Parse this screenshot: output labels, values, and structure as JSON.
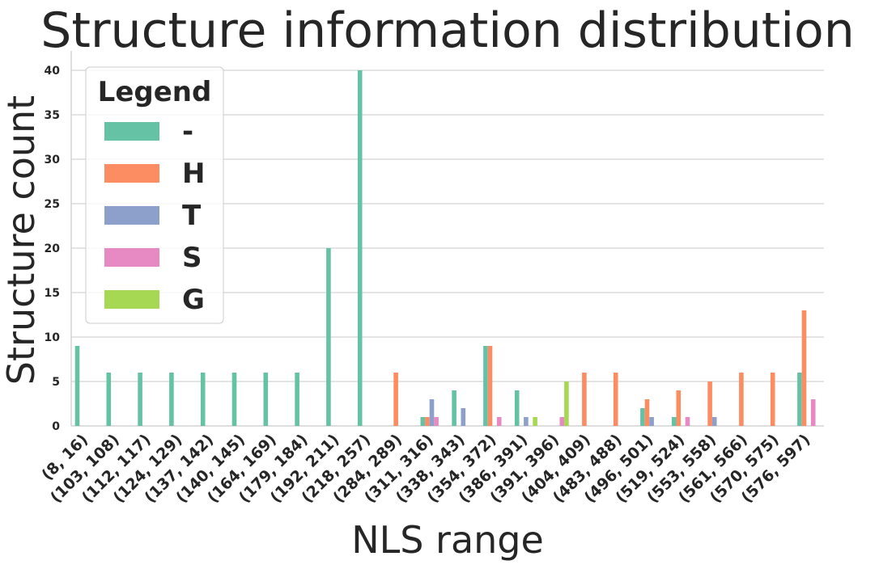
{
  "chart_data": {
    "type": "bar",
    "title": "Structure information distribution",
    "xlabel": "NLS range",
    "ylabel": "Structure count",
    "ylim": [
      0,
      42
    ],
    "yticks": [
      0,
      5,
      10,
      15,
      20,
      25,
      30,
      35,
      40
    ],
    "grid": "horizontal",
    "legend_title": "Legend",
    "legend_position": "top-left",
    "categories": [
      "(8, 16)",
      "(103, 108)",
      "(112, 117)",
      "(124, 129)",
      "(137, 142)",
      "(140, 145)",
      "(164, 169)",
      "(179, 184)",
      "(192, 211)",
      "(218, 257)",
      "(284, 289)",
      "(311, 316)",
      "(338, 343)",
      "(354, 372)",
      "(386, 391)",
      "(391, 396)",
      "(404, 409)",
      "(483, 488)",
      "(496, 501)",
      "(519, 524)",
      "(553, 558)",
      "(561, 566)",
      "(570, 575)",
      "(576, 597)"
    ],
    "series": [
      {
        "name": "-",
        "color": "#66c2a5",
        "values": [
          9,
          6,
          6,
          6,
          6,
          6,
          6,
          6,
          20,
          40,
          0,
          1,
          4,
          9,
          4,
          0,
          0,
          0,
          2,
          1,
          0,
          0,
          0,
          6
        ]
      },
      {
        "name": "H",
        "color": "#fc8d62",
        "values": [
          0,
          0,
          0,
          0,
          0,
          0,
          0,
          0,
          0,
          0,
          6,
          1,
          0,
          9,
          0,
          0,
          6,
          6,
          3,
          4,
          5,
          6,
          6,
          13
        ]
      },
      {
        "name": "T",
        "color": "#8da0cb",
        "values": [
          0,
          0,
          0,
          0,
          0,
          0,
          0,
          0,
          0,
          0,
          0,
          3,
          2,
          0,
          1,
          0,
          0,
          0,
          1,
          0,
          1,
          0,
          0,
          0
        ]
      },
      {
        "name": "S",
        "color": "#e78ac3",
        "values": [
          0,
          0,
          0,
          0,
          0,
          0,
          0,
          0,
          0,
          0,
          0,
          1,
          0,
          1,
          0,
          1,
          0,
          0,
          0,
          1,
          0,
          0,
          0,
          3
        ]
      },
      {
        "name": "G",
        "color": "#a6d854",
        "values": [
          0,
          0,
          0,
          0,
          0,
          0,
          0,
          0,
          0,
          0,
          0,
          0,
          0,
          0,
          1,
          5,
          0,
          0,
          0,
          0,
          0,
          0,
          0,
          0
        ]
      }
    ]
  }
}
